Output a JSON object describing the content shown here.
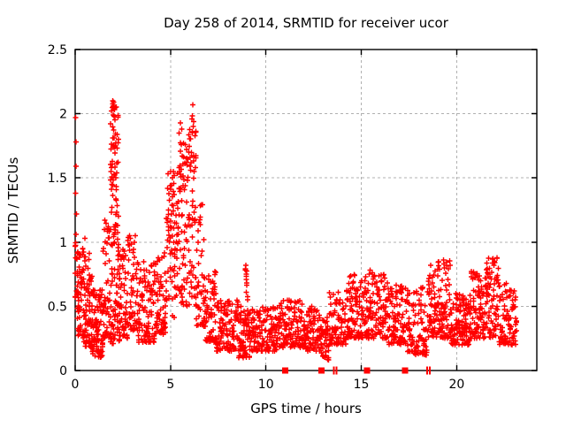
{
  "figure": {
    "background": "#ffffff"
  },
  "chart_data": {
    "type": "scatter",
    "title": "Day 258 of 2014, SRMTID for receiver ucor",
    "xlabel": "GPS time / hours",
    "ylabel": "SRMTID / TECUs",
    "xlim": [
      0,
      24.2
    ],
    "ylim": [
      0,
      2.5
    ],
    "xticks": [
      0,
      5,
      10,
      15,
      20
    ],
    "xtick_labels": [
      "0",
      "5",
      "10",
      "15",
      "20"
    ],
    "yticks": [
      0,
      0.5,
      1,
      1.5,
      2,
      2.5
    ],
    "ytick_labels": [
      "0",
      "0.5",
      "1",
      "1.5",
      "2",
      "2.5"
    ],
    "grid": true,
    "grid_style": "dashed",
    "grid_color": "#b0b0b0",
    "axis_color": "#000000",
    "legend": "none",
    "marker": "plus",
    "marker_color": "#ff0000",
    "series": [
      {
        "name": "SRMTID",
        "comment": "dense 30s-cadence scatter; cluster_envelope rows are [x_start_h, x_end_h, approx_n_points, y_min_TECU, y_max_TECU, low_bias]",
        "cluster_envelope": [
          [
            0.0,
            0.12,
            15,
            0.5,
            1.0,
            1.2
          ],
          [
            0.1,
            0.45,
            55,
            0.25,
            0.95,
            1.4
          ],
          [
            0.45,
            0.9,
            80,
            0.18,
            0.92,
            1.6
          ],
          [
            0.9,
            1.45,
            85,
            0.1,
            0.65,
            1.5
          ],
          [
            1.45,
            1.8,
            50,
            0.25,
            1.15,
            1.6
          ],
          [
            1.8,
            2.35,
            60,
            0.2,
            0.9,
            1.5
          ],
          [
            1.85,
            2.28,
            75,
            0.9,
            2.08,
            0.75
          ],
          [
            2.3,
            2.75,
            55,
            0.25,
            0.95,
            1.6
          ],
          [
            2.75,
            3.3,
            55,
            0.3,
            1.05,
            1.5
          ],
          [
            3.3,
            4.2,
            90,
            0.22,
            0.85,
            1.7
          ],
          [
            4.2,
            4.75,
            65,
            0.28,
            0.95,
            1.5
          ],
          [
            4.75,
            5.35,
            70,
            0.4,
            1.57,
            1.0
          ],
          [
            5.35,
            5.8,
            70,
            0.5,
            1.93,
            0.95
          ],
          [
            5.8,
            6.35,
            80,
            0.5,
            2.0,
            1.05
          ],
          [
            6.35,
            6.75,
            45,
            0.35,
            1.3,
            1.4
          ],
          [
            6.75,
            7.4,
            70,
            0.22,
            0.8,
            1.7
          ],
          [
            7.4,
            8.55,
            110,
            0.15,
            0.55,
            1.5
          ],
          [
            8.55,
            9.15,
            55,
            0.1,
            0.5,
            1.4
          ],
          [
            8.85,
            9.05,
            15,
            0.3,
            0.8,
            1.0
          ],
          [
            9.15,
            10.6,
            135,
            0.15,
            0.5,
            1.5
          ],
          [
            10.6,
            12.1,
            145,
            0.18,
            0.55,
            1.5
          ],
          [
            12.1,
            12.9,
            75,
            0.15,
            0.5,
            1.5
          ],
          [
            12.9,
            13.3,
            38,
            0.08,
            0.42,
            1.3
          ],
          [
            13.3,
            14.2,
            85,
            0.2,
            0.62,
            1.5
          ],
          [
            14.2,
            15.1,
            95,
            0.25,
            0.75,
            1.4
          ],
          [
            15.1,
            16.4,
            135,
            0.25,
            0.78,
            1.5
          ],
          [
            16.4,
            17.4,
            105,
            0.2,
            0.68,
            1.5
          ],
          [
            17.4,
            18.5,
            105,
            0.12,
            0.65,
            1.5
          ],
          [
            18.5,
            19.7,
            125,
            0.25,
            0.86,
            1.5
          ],
          [
            19.7,
            20.7,
            105,
            0.2,
            0.6,
            1.5
          ],
          [
            20.7,
            21.5,
            90,
            0.25,
            0.78,
            1.5
          ],
          [
            21.5,
            22.2,
            80,
            0.25,
            0.88,
            1.4
          ],
          [
            22.2,
            23.15,
            80,
            0.2,
            0.68,
            1.5
          ]
        ],
        "outlier_points": [
          [
            0.03,
            1.97
          ],
          [
            0.05,
            1.78
          ],
          [
            0.04,
            1.59
          ],
          [
            0.03,
            1.38
          ],
          [
            0.06,
            1.22
          ],
          [
            0.04,
            1.06
          ],
          [
            1.98,
            2.1
          ],
          [
            2.02,
            2.09
          ],
          [
            1.95,
            2.05
          ],
          [
            2.06,
            2.03
          ],
          [
            2.0,
            1.99
          ],
          [
            6.17,
            2.07
          ],
          [
            6.13,
            1.96
          ],
          [
            6.2,
            1.9
          ],
          [
            5.52,
            1.93
          ],
          [
            5.58,
            1.88
          ],
          [
            5.15,
            1.55
          ],
          [
            5.2,
            1.52
          ],
          [
            5.1,
            1.5
          ],
          [
            0.5,
            1.03
          ],
          [
            1.55,
            1.17
          ],
          [
            1.52,
            1.1
          ],
          [
            4.85,
            1.18
          ],
          [
            4.9,
            1.12
          ],
          [
            2.85,
            1.05
          ],
          [
            3.1,
            1.0
          ],
          [
            8.95,
            0.82
          ],
          [
            8.98,
            0.75
          ],
          [
            14.65,
            0.74
          ],
          [
            15.45,
            0.78
          ],
          [
            19.3,
            0.86
          ],
          [
            19.35,
            0.8
          ],
          [
            21.9,
            0.87
          ],
          [
            21.95,
            0.82
          ]
        ],
        "zero_line_squares_x": [
          11.0,
          12.9,
          15.3,
          17.3
        ],
        "zero_line_bars_x": [
          13.55,
          13.7,
          18.45,
          18.6
        ]
      }
    ]
  }
}
